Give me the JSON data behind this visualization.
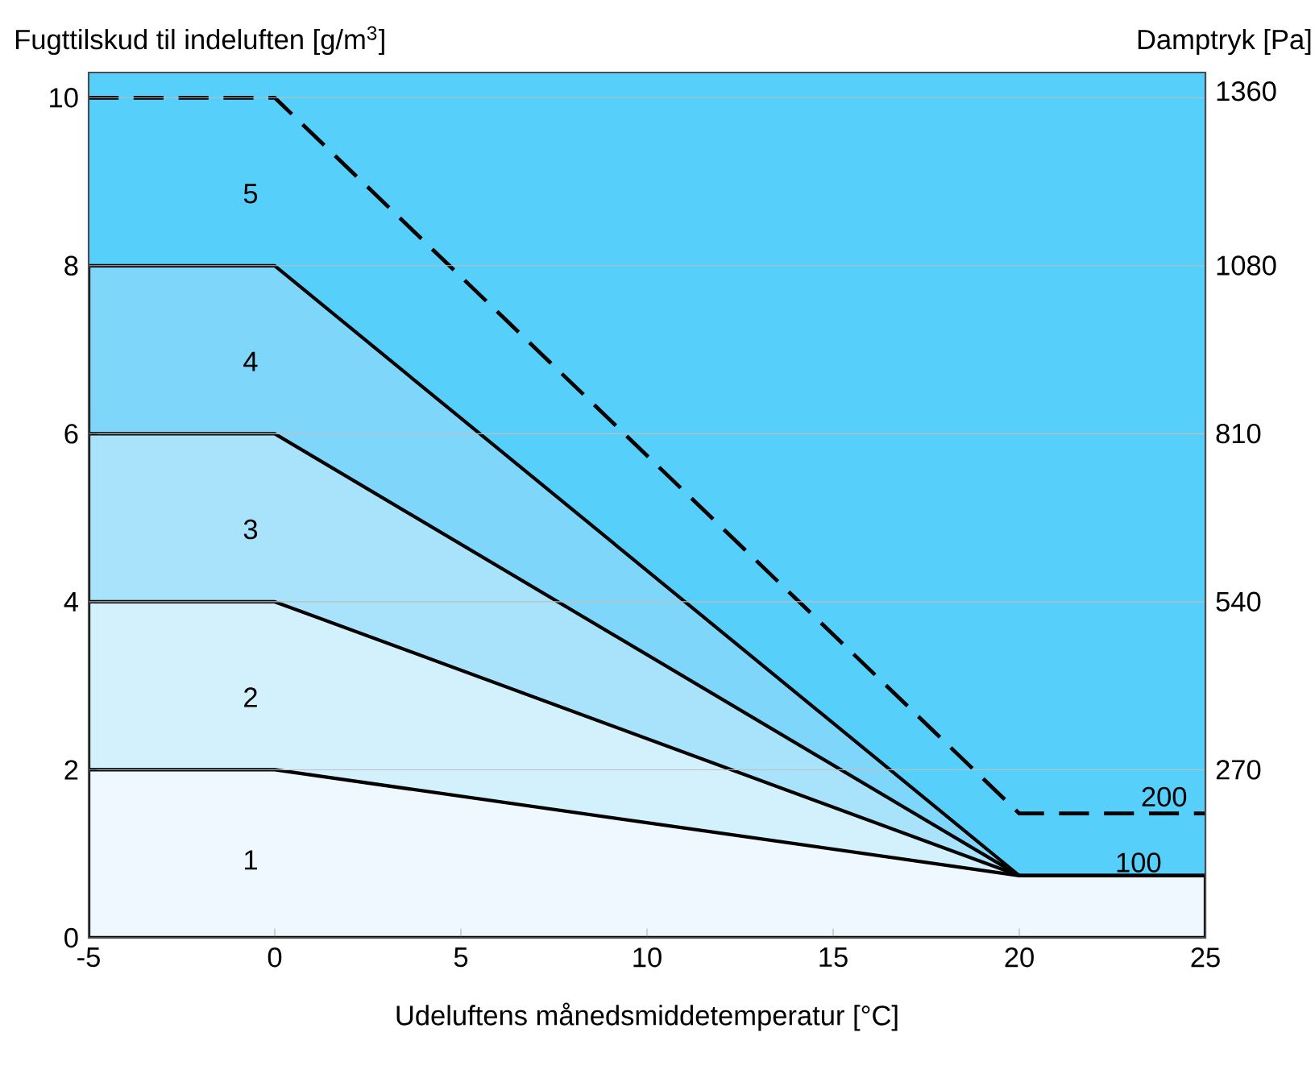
{
  "chart_data": {
    "type": "area",
    "xlabel": "Udeluftens månedsmiddetemperatur [°C]",
    "ylabel": "Fugttilskud til indeluften [g/m$^{3}$]",
    "y2label": "Damptryk [Pa]",
    "x": [
      -5,
      0,
      20,
      25
    ],
    "series": [
      {
        "color": "#7fd6fb",
        "values": [
          8,
          8,
          0.74,
          0.74
        ]
      },
      {
        "color": "#a9e3fb",
        "values": [
          6,
          6,
          0.74,
          0.74
        ]
      },
      {
        "color": "#d3f0fd",
        "values": [
          4,
          4,
          0.74,
          0.74
        ]
      },
      {
        "color": "#eef8fe",
        "values": [
          2,
          2,
          0.74,
          0.74
        ]
      },
      {
        "type": "line",
        "color": "#000000",
        "line_style": "dashed",
        "values": [
          10,
          10,
          1.48,
          1.48
        ]
      }
    ],
    "bands": [
      {
        "axis": "y",
        "from": 0,
        "to": 10.3,
        "color": "#57cffb"
      }
    ],
    "annotations": [
      "1",
      "2",
      "3",
      "4",
      "5",
      "100",
      "200"
    ],
    "xlim": [
      -5,
      25
    ],
    "xticks": [
      -5,
      0,
      5,
      10,
      15,
      20,
      25
    ],
    "ylim": [
      0,
      10.3
    ],
    "yticks": [
      0,
      2,
      4,
      6,
      8,
      10
    ],
    "y2lim": [
      0,
      1390
    ],
    "y2ticks": [
      270,
      540,
      810,
      1080,
      1360
    ],
    "grid": "y"
  }
}
